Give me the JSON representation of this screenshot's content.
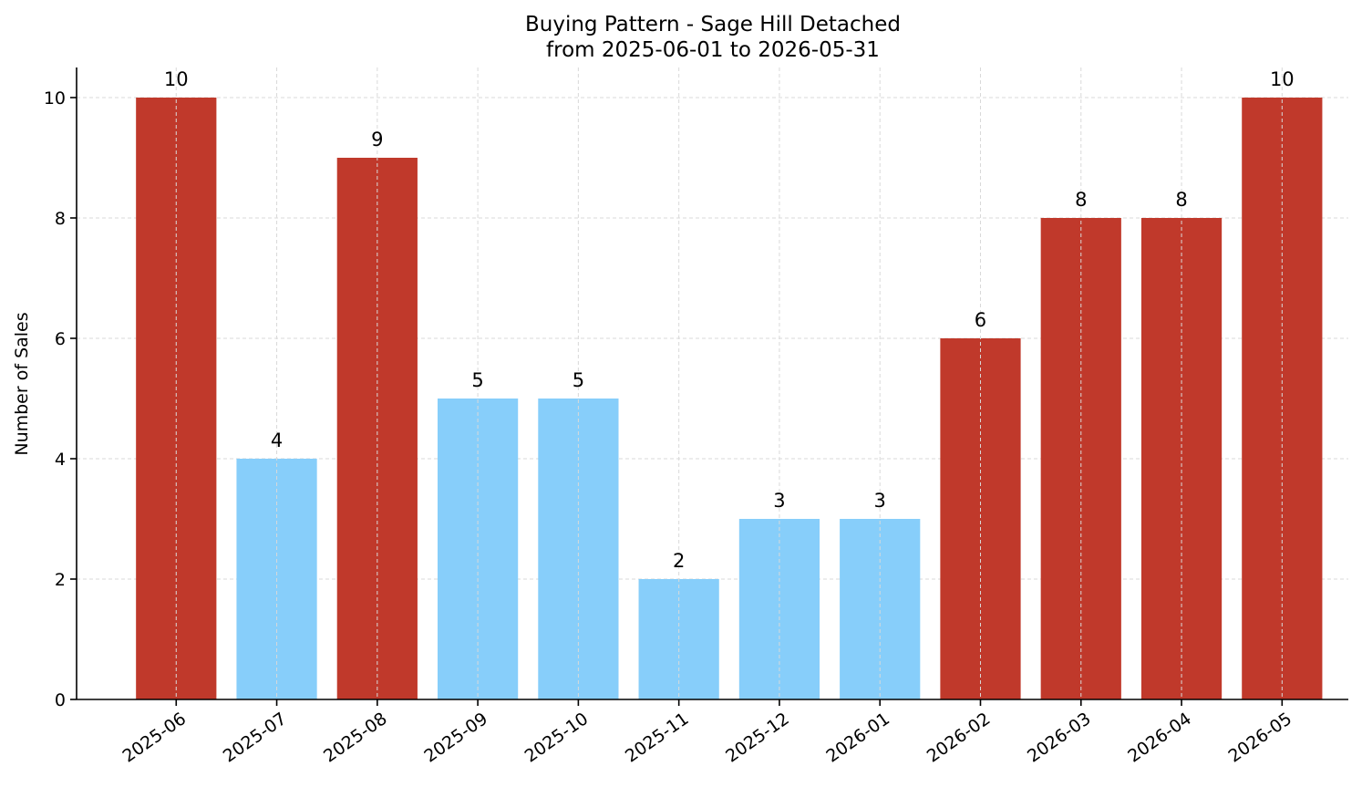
{
  "chart_data": {
    "type": "bar",
    "title": "Buying Pattern - Sage Hill Detached",
    "subtitle": "from 2025-06-01 to 2026-05-31",
    "xlabel": "",
    "ylabel": "Number of Sales",
    "categories": [
      "2025-06",
      "2025-07",
      "2025-08",
      "2025-09",
      "2025-10",
      "2025-11",
      "2025-12",
      "2026-01",
      "2026-02",
      "2026-03",
      "2026-04",
      "2026-05"
    ],
    "values": [
      10,
      4,
      9,
      5,
      5,
      2,
      3,
      3,
      6,
      8,
      8,
      10
    ],
    "bar_colors": [
      "#c0392b",
      "#87cefa",
      "#c0392b",
      "#87cefa",
      "#87cefa",
      "#87cefa",
      "#87cefa",
      "#87cefa",
      "#c0392b",
      "#c0392b",
      "#c0392b",
      "#c0392b"
    ],
    "ylim": [
      0,
      10.5
    ],
    "yticks": [
      0,
      2,
      4,
      6,
      8,
      10
    ],
    "grid": true,
    "show_data_labels": true
  }
}
